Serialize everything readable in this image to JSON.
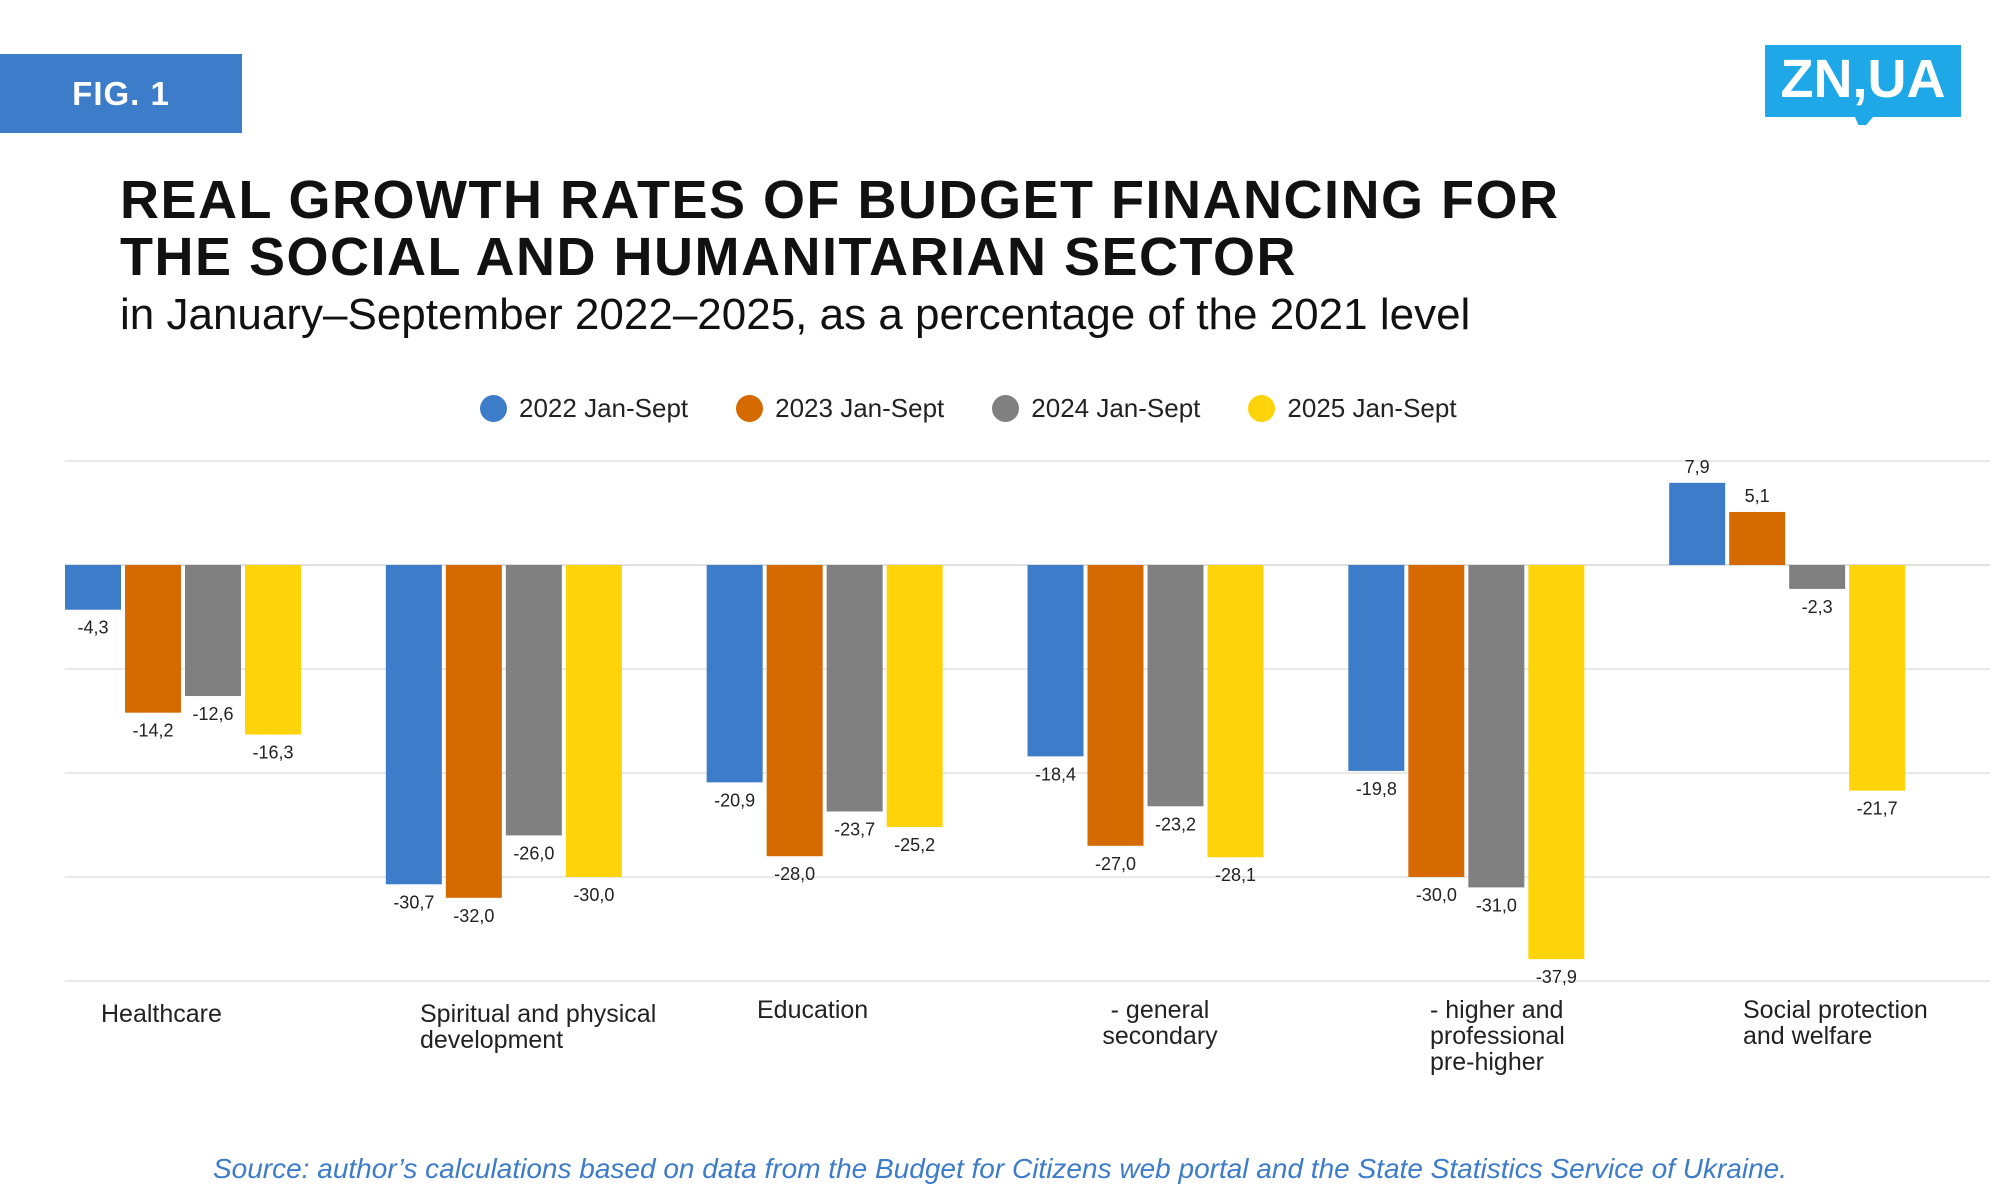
{
  "fig_label": "FIG. 1",
  "logo": {
    "text": "ZN,UA",
    "color": "#1ea8e8"
  },
  "title_line1": "REAL GROWTH RATES OF BUDGET FINANCING FOR",
  "title_line2": "THE SOCIAL AND HUMANITARIAN SECTOR",
  "subtitle": "in January–September 2022–2025, as a percentage of the 2021 level",
  "source": "Source: author’s calculations based on data from the Budget for Citizens web portal and the State Statistics Service of Ukraine.",
  "chart_data": {
    "type": "bar",
    "title": "REAL GROWTH RATES OF BUDGET FINANCING FOR THE SOCIAL AND HUMANITARIAN SECTOR",
    "xlabel": "",
    "ylabel": "",
    "ylim": [
      -40,
      10
    ],
    "grid": true,
    "legend_position": "top-center",
    "categories": [
      [
        "Healthcare"
      ],
      [
        "Spiritual and physical",
        "development"
      ],
      [
        "Education"
      ],
      [
        "- general",
        "secondary"
      ],
      [
        "- higher and",
        "professional",
        "pre-higher"
      ],
      [
        "Social protection",
        "and welfare"
      ]
    ],
    "series": [
      {
        "name": "2022 Jan-Sept",
        "color": "#3d7cc9",
        "values": [
          -4.3,
          -30.7,
          -20.9,
          -18.4,
          -19.8,
          7.9
        ],
        "labels": [
          "-4,3",
          "-30,7",
          "-20,9",
          "-18,4",
          "-19,8",
          "7,9"
        ]
      },
      {
        "name": "2023 Jan-Sept",
        "color": "#d46a00",
        "values": [
          -14.2,
          -32.0,
          -28.0,
          -27.0,
          -30.0,
          5.1
        ],
        "labels": [
          "-14,2",
          "-32,0",
          "-28,0",
          "-27,0",
          "-30,0",
          "5,1"
        ]
      },
      {
        "name": "2024 Jan-Sept",
        "color": "#808080",
        "values": [
          -12.6,
          -26.0,
          -23.7,
          -23.2,
          -31.0,
          -2.3
        ],
        "labels": [
          "-12,6",
          "-26,0",
          "-23,7",
          "-23,2",
          "-31,0",
          "-2,3"
        ]
      },
      {
        "name": "2025 Jan-Sept",
        "color": "#ffd30a",
        "values": [
          -16.3,
          -30.0,
          -25.2,
          -28.1,
          -37.9,
          -21.7
        ],
        "labels": [
          "-16,3",
          "-30,0",
          "-25,2",
          "-28,1",
          "-37,9",
          "-21,7"
        ]
      }
    ]
  }
}
